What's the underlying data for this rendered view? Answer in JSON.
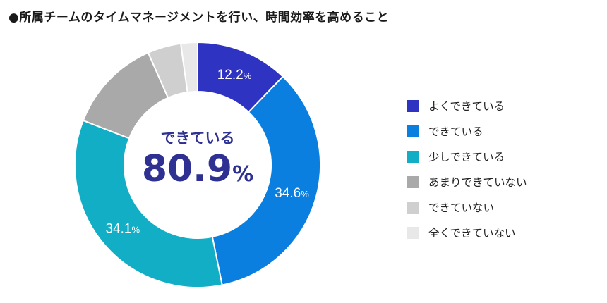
{
  "title": "●所属チームのタイムマネージメントを行い、時間効率を高めること",
  "center": {
    "label": "できている",
    "value": "80.9",
    "unit": "%"
  },
  "chart_data": {
    "type": "pie",
    "title": "●所属チームのタイムマネージメントを行い、時間効率を高めること",
    "donut": true,
    "unit": "%",
    "categories": [
      "よくできている",
      "できている",
      "少しできている",
      "あまりできていない",
      "できていない",
      "全くできていない"
    ],
    "values": [
      12.2,
      34.6,
      34.1,
      12.5,
      4.4,
      2.2
    ],
    "colors": [
      "#2e33c2",
      "#0a7fe0",
      "#12aec5",
      "#a9a9a9",
      "#cfcfcf",
      "#e8e8e8"
    ],
    "label_colors": [
      "#ffffff",
      "#ffffff",
      "#ffffff",
      "#ffffff",
      "#ffffff",
      "#ffffff"
    ],
    "data_labels": [
      "12.2",
      "34.6",
      "34.1",
      null,
      null,
      null
    ],
    "legend_position": "right"
  }
}
